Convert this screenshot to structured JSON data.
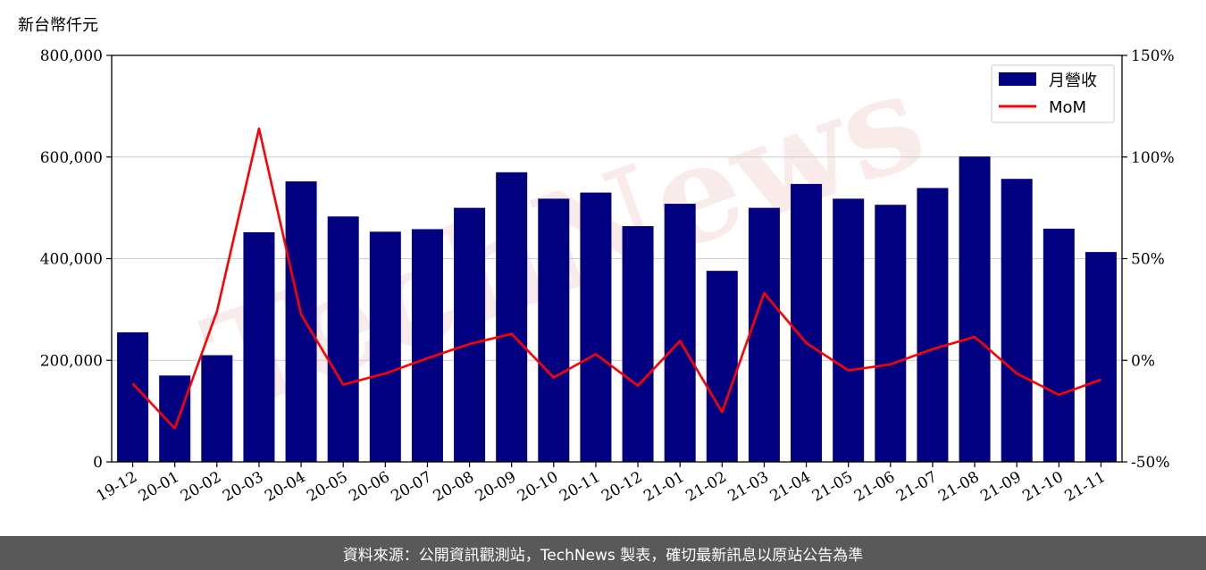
{
  "unit_label": "新台幣仟元",
  "footer": "資料來源：公開資訊觀測站，TechNews 製表，確切最新訊息以原站公告為準",
  "watermark": "TechNews",
  "colors": {
    "bar": "#000080",
    "line": "#ff0000",
    "grid": "#cccccc"
  },
  "chart_data": {
    "type": "bar",
    "categories": [
      "19-12",
      "20-01",
      "20-02",
      "20-03",
      "20-04",
      "20-05",
      "20-06",
      "20-07",
      "20-08",
      "20-09",
      "20-10",
      "20-11",
      "20-12",
      "21-01",
      "21-02",
      "21-03",
      "21-04",
      "21-05",
      "21-06",
      "21-07",
      "21-08",
      "21-09",
      "21-10",
      "21-11"
    ],
    "series": [
      {
        "name": "月營收",
        "type": "bar",
        "axis": "left",
        "values": [
          255000,
          170000,
          210000,
          452000,
          552000,
          483000,
          453000,
          458000,
          500000,
          570000,
          518000,
          530000,
          464000,
          508000,
          376000,
          500000,
          547000,
          518000,
          506000,
          539000,
          601000,
          557000,
          459000,
          413000
        ]
      },
      {
        "name": "MoM",
        "type": "line",
        "axis": "right",
        "values": [
          -11.5,
          -33.5,
          24,
          114,
          22.5,
          -12,
          -6.5,
          1,
          8,
          13,
          -8.5,
          3,
          -12.5,
          9.5,
          -25.5,
          33,
          8.5,
          -5,
          -2,
          5.5,
          11.5,
          -6.5,
          -17,
          -9.5
        ]
      }
    ],
    "left_axis": {
      "ylim": [
        0,
        800000
      ],
      "ticks": [
        "0",
        "200,000",
        "400,000",
        "600,000",
        "800,000"
      ],
      "tick_values": [
        0,
        200000,
        400000,
        600000,
        800000
      ]
    },
    "right_axis": {
      "ylim": [
        -50,
        150
      ],
      "ticks": [
        "-50%",
        "0%",
        "50%",
        "100%",
        "150%"
      ],
      "tick_values": [
        -50,
        0,
        50,
        100,
        150
      ]
    },
    "grid": true,
    "legend": {
      "position": "top-right",
      "entries": [
        "月營收",
        "MoM"
      ]
    }
  }
}
